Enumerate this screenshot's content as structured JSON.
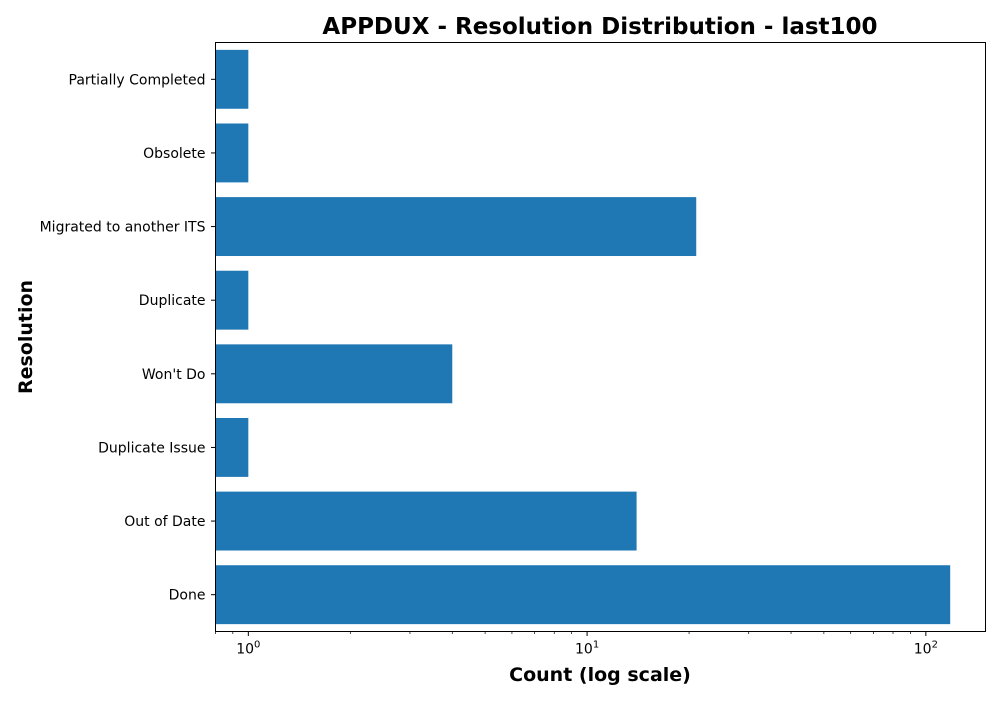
{
  "chart_data": {
    "type": "bar",
    "orientation": "horizontal",
    "title": "APPDUX - Resolution Distribution - last100",
    "xlabel": "Count (log scale)",
    "ylabel": "Resolution",
    "x_scale": "log",
    "xlim": [
      0.8,
      150
    ],
    "x_tick_labels": [
      {
        "base": "10",
        "exp": "0",
        "value": 1
      },
      {
        "base": "10",
        "exp": "1",
        "value": 10
      },
      {
        "base": "10",
        "exp": "2",
        "value": 100
      }
    ],
    "categories": [
      "Done",
      "Out of Date",
      "Duplicate Issue",
      "Won't Do",
      "Duplicate",
      "Migrated to another ITS",
      "Obsolete",
      "Partially Completed"
    ],
    "values": [
      118,
      14,
      1,
      4,
      1,
      21,
      1,
      1
    ],
    "bar_color": "#1f77b4",
    "grid": false,
    "legend": false
  }
}
